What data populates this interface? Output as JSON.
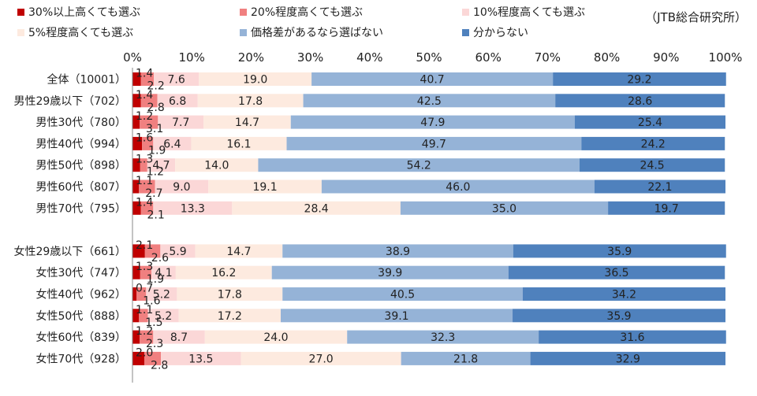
{
  "source_note": "（JTB総合研究所）",
  "chart_data": {
    "type": "bar",
    "orientation": "horizontal",
    "stacked": true,
    "percent": true,
    "xlim": [
      0,
      100
    ],
    "x_ticks": [
      "0%",
      "10%",
      "20%",
      "30%",
      "40%",
      "50%",
      "60%",
      "70%",
      "80%",
      "90%",
      "100%"
    ],
    "grid": false,
    "legend_position": "top",
    "categories": [
      "全体（10001）",
      "男性29歳以下（702）",
      "男性30代（780）",
      "男性40代（994）",
      "男性50代（898）",
      "男性60代（807）",
      "男性70代（795）",
      "",
      "女性29歳以下（661）",
      "女性30代（747）",
      "女性40代（962）",
      "女性50代（888）",
      "女性60代（839）",
      "女性70代（928）"
    ],
    "series": [
      {
        "name": "30%以上高くても選ぶ",
        "color": "#C00000",
        "values": [
          1.4,
          1.4,
          1.2,
          1.6,
          1.3,
          1.1,
          1.4,
          null,
          2.1,
          1.3,
          0.7,
          1.1,
          1.2,
          2.0
        ]
      },
      {
        "name": "20%程度高くても選ぶ",
        "color": "#F08080",
        "values": [
          2.2,
          2.8,
          3.1,
          1.9,
          1.2,
          2.7,
          2.1,
          null,
          2.6,
          1.9,
          1.6,
          1.5,
          2.3,
          2.8
        ]
      },
      {
        "name": "10%程度高くても選ぶ",
        "color": "#FBD7D7",
        "values": [
          7.6,
          6.8,
          7.7,
          6.4,
          4.7,
          9.0,
          13.3,
          null,
          5.9,
          4.1,
          5.2,
          5.2,
          8.7,
          13.5
        ]
      },
      {
        "name": "5%程度高くても選ぶ",
        "color": "#FDEADF",
        "values": [
          19.0,
          17.8,
          14.7,
          16.1,
          14.0,
          19.1,
          28.4,
          null,
          14.7,
          16.2,
          17.8,
          17.2,
          24.0,
          27.0
        ]
      },
      {
        "name": "価格差があるなら選ばない",
        "color": "#95B3D7",
        "values": [
          40.7,
          42.5,
          47.9,
          49.7,
          54.2,
          46.0,
          35.0,
          null,
          38.9,
          39.9,
          40.5,
          39.1,
          32.3,
          21.8
        ]
      },
      {
        "name": "分からない",
        "color": "#4F81BD",
        "values": [
          29.2,
          28.6,
          25.4,
          24.2,
          24.5,
          22.1,
          19.7,
          null,
          35.9,
          36.5,
          34.2,
          35.9,
          31.6,
          32.9
        ]
      }
    ],
    "label_text": [
      [
        "1.4",
        "2.2",
        "7.6",
        "19.0",
        "40.7",
        "29.2"
      ],
      [
        "1.4",
        "2.8",
        "6.8",
        "17.8",
        "42.5",
        "28.6"
      ],
      [
        "1.2",
        "3.1",
        "7.7",
        "14.7",
        "47.9",
        "25.4"
      ],
      [
        "1.6",
        "1.9",
        "6.4",
        "16.1",
        "49.7",
        "24.2"
      ],
      [
        "1.3",
        "1.2",
        "4.7",
        "14.0",
        "54.2",
        "24.5"
      ],
      [
        "1.1",
        "2.7",
        "9.0",
        "19.1",
        "46.0",
        "22.1"
      ],
      [
        "1.4",
        "2.1",
        "13.3",
        "28.4",
        "35.0",
        "19.7"
      ],
      [],
      [
        "2.1",
        "2.6",
        "5.9",
        "14.7",
        "38.9",
        "35.9"
      ],
      [
        "1.3",
        "1.9",
        "4.1",
        "16.2",
        "39.9",
        "36.5"
      ],
      [
        "0.7",
        "1.6",
        "5.2",
        "17.8",
        "40.5",
        "34.2"
      ],
      [
        "1.1",
        "1.5",
        "5.2",
        "17.2",
        "39.1",
        "35.9"
      ],
      [
        "1.2",
        "2.3",
        "8.7",
        "24.0",
        "32.3",
        "31.6"
      ],
      [
        "2.0",
        "2.8",
        "13.5",
        "27.0",
        "21.8",
        "32.9"
      ]
    ]
  }
}
